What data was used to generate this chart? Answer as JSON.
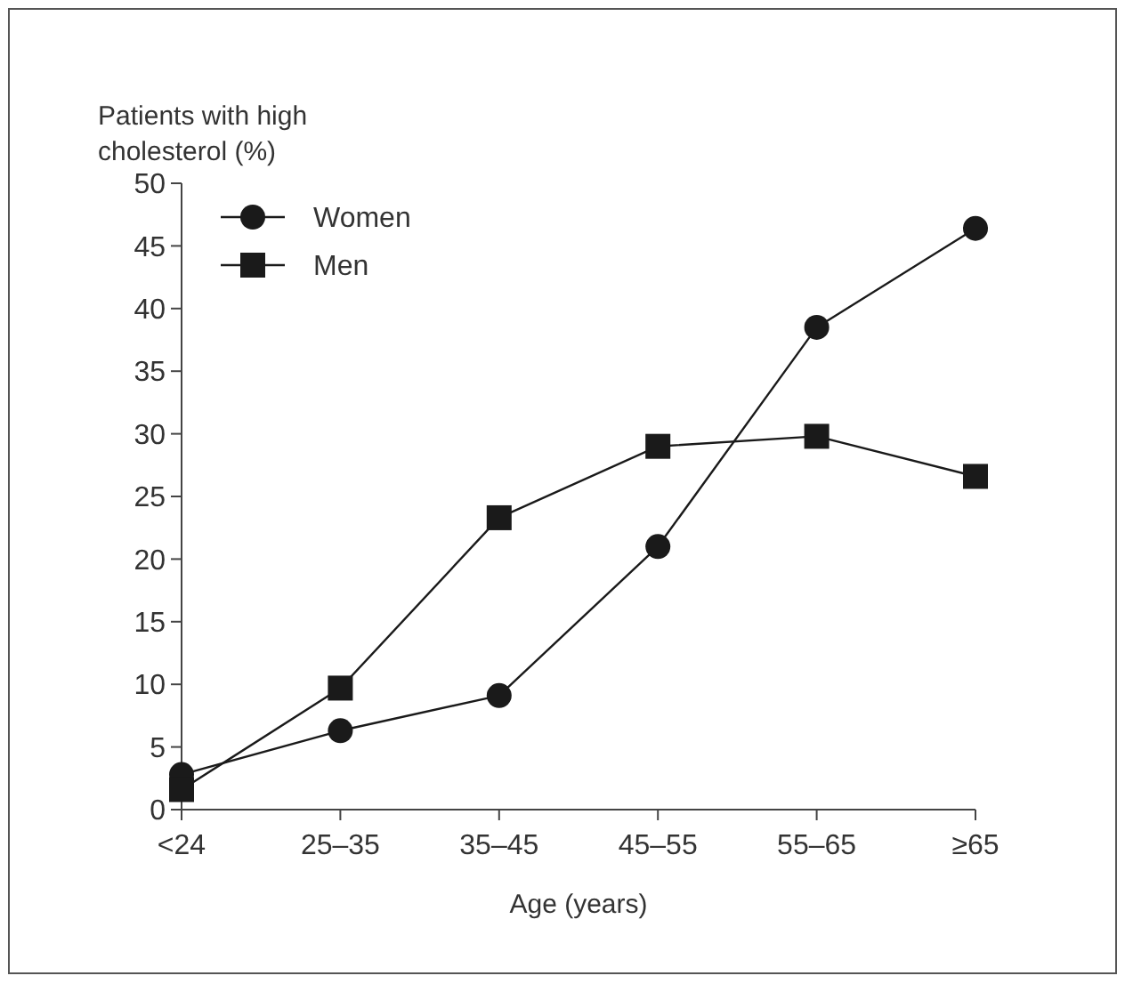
{
  "chart_data": {
    "type": "line",
    "ylabel": "Patients with high cholesterol (%)",
    "xlabel": "Age (years)",
    "categories": [
      "<24",
      "25–35",
      "35–45",
      "45–55",
      "55–65",
      "≥65"
    ],
    "series": [
      {
        "name": "Women",
        "color": "#1a1a1a",
        "marker": "circle",
        "values": [
          2.8,
          6.3,
          9.1,
          21,
          38.5,
          46.4
        ]
      },
      {
        "name": "Men",
        "color": "#1a1a1a",
        "marker": "square",
        "values": [
          1.6,
          9.7,
          23.3,
          29,
          29.8,
          26.6
        ]
      }
    ],
    "ylim": [
      0,
      50
    ],
    "yticks": [
      0,
      5,
      10,
      15,
      20,
      25,
      30,
      35,
      40,
      45,
      50
    ],
    "legend": "top left",
    "grid": false,
    "line_style": "solid"
  }
}
